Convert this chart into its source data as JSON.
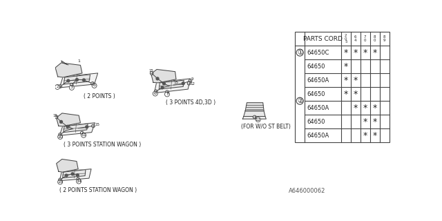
{
  "title": "A646000062",
  "bg_color": "#ffffff",
  "line_color": "#444444",
  "table": {
    "header_label": "PARTS CORD",
    "col_headers": [
      "2\n0\n5",
      "6\n4",
      "7\n0",
      "8\n0",
      "8\n9"
    ],
    "rows": [
      {
        "part": "64650C",
        "marks": [
          1,
          1,
          1,
          1,
          0
        ],
        "group": 1
      },
      {
        "part": "64650",
        "marks": [
          1,
          0,
          0,
          0,
          0
        ],
        "group": 2
      },
      {
        "part": "64650A",
        "marks": [
          1,
          1,
          0,
          0,
          0
        ],
        "group": 2
      },
      {
        "part": "64650",
        "marks": [
          1,
          1,
          0,
          0,
          0
        ],
        "group": 2
      },
      {
        "part": "64650A",
        "marks": [
          0,
          1,
          1,
          1,
          0
        ],
        "group": 2
      },
      {
        "part": "64650",
        "marks": [
          0,
          0,
          1,
          1,
          0
        ],
        "group": 2
      },
      {
        "part": "64650A",
        "marks": [
          0,
          0,
          1,
          1,
          0
        ],
        "group": 2
      }
    ]
  }
}
